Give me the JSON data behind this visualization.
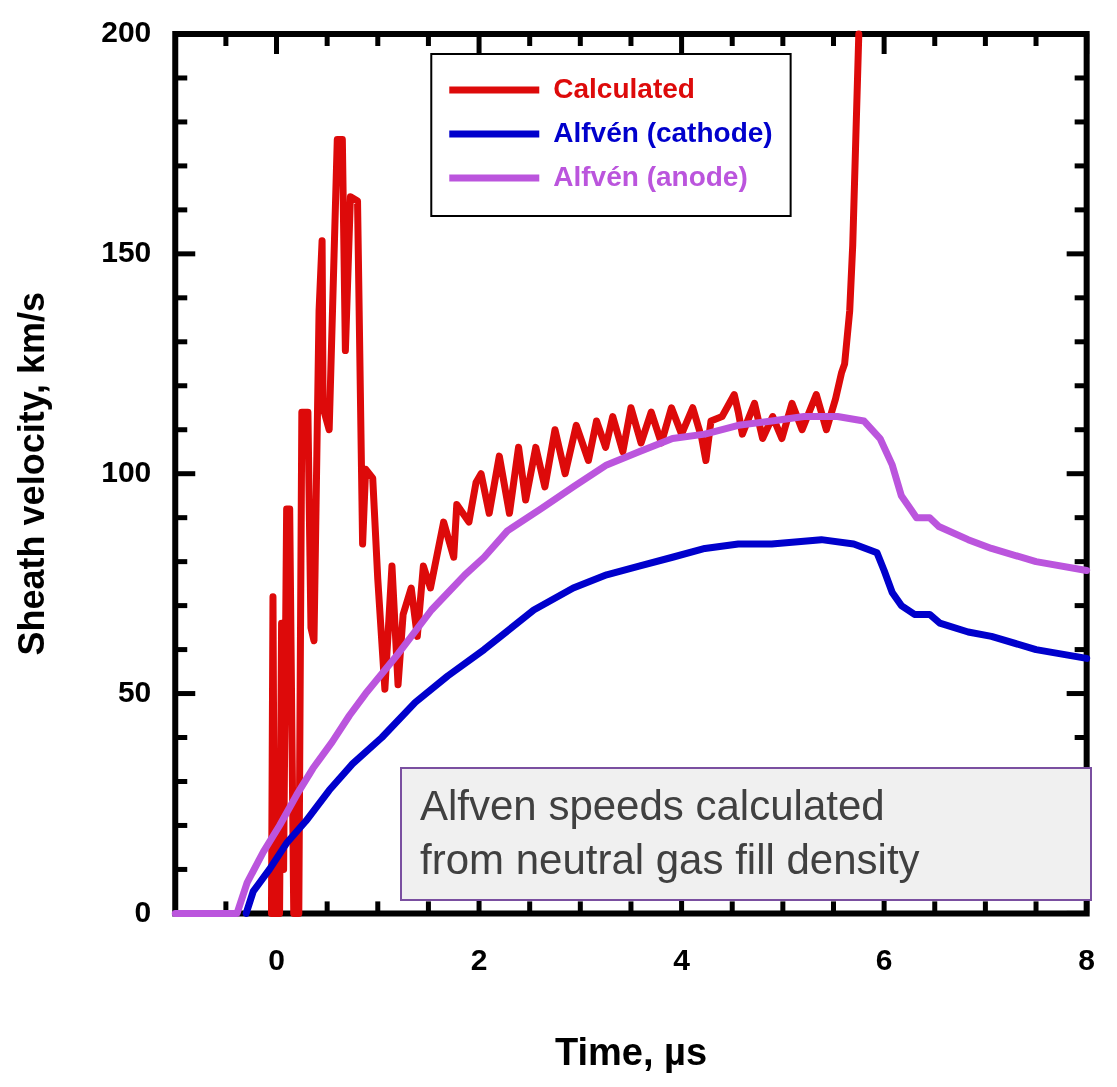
{
  "chart_data": {
    "type": "line",
    "xlabel": "Time, µs",
    "ylabel": "Sheath velocity, km/s",
    "xlim": [
      -1,
      8
    ],
    "ylim": [
      0,
      200
    ],
    "xticks": [
      {
        "value": -0.5,
        "label": null
      },
      0,
      {
        "value": 0.5,
        "label": null
      },
      {
        "value": 1,
        "label": null
      },
      {
        "value": 1.5,
        "label": null
      },
      2,
      {
        "value": 2.5,
        "label": null
      },
      {
        "value": 3,
        "label": null
      },
      {
        "value": 3.5,
        "label": null
      },
      4,
      {
        "value": 4.5,
        "label": null
      },
      {
        "value": 5,
        "label": null
      },
      {
        "value": 5.5,
        "label": null
      },
      6,
      {
        "value": 6.5,
        "label": null
      },
      {
        "value": 7,
        "label": null
      },
      {
        "value": 7.5,
        "label": null
      },
      8
    ],
    "yticks": [
      0,
      {
        "value": 10,
        "label": null
      },
      {
        "value": 20,
        "label": null
      },
      {
        "value": 30,
        "label": null
      },
      {
        "value": 40,
        "label": null
      },
      50,
      {
        "value": 60,
        "label": null
      },
      {
        "value": 70,
        "label": null
      },
      {
        "value": 80,
        "label": null
      },
      {
        "value": 90,
        "label": null
      },
      100,
      {
        "value": 110,
        "label": null
      },
      {
        "value": 120,
        "label": null
      },
      {
        "value": 130,
        "label": null
      },
      {
        "value": 140,
        "label": null
      },
      150,
      {
        "value": 160,
        "label": null
      },
      {
        "value": 170,
        "label": null
      },
      {
        "value": 180,
        "label": null
      },
      {
        "value": 190,
        "label": null
      },
      200
    ],
    "grid": false,
    "legend": "top",
    "marker": "none",
    "line_style": "solid",
    "annotations": [
      "Alfven speeds calculated from neutral gas fill density"
    ],
    "series": [
      {
        "name": "Calculated",
        "color": "#dd0a0a",
        "x": [
          -0.05,
          -0.035,
          -0.02,
          0.03,
          0.05,
          0.07,
          0.1,
          0.13,
          0.17,
          0.22,
          0.25,
          0.31,
          0.34,
          0.37,
          0.42,
          0.45,
          0.46,
          0.52,
          0.6,
          0.65,
          0.68,
          0.73,
          0.8,
          0.85,
          0.88,
          0.95,
          1.0,
          1.07,
          1.14,
          1.2,
          1.25,
          1.33,
          1.39,
          1.45,
          1.52,
          1.65,
          1.75,
          1.78,
          1.9,
          1.97,
          2.02,
          2.1,
          2.2,
          2.3,
          2.39,
          2.46,
          2.56,
          2.65,
          2.75,
          2.85,
          2.96,
          3.08,
          3.16,
          3.25,
          3.32,
          3.42,
          3.5,
          3.6,
          3.7,
          3.8,
          3.9,
          4.0,
          4.11,
          4.2,
          4.24,
          4.29,
          4.4,
          4.52,
          4.56,
          4.6,
          4.72,
          4.8,
          4.9,
          4.99,
          5.09,
          5.19,
          5.33,
          5.43,
          5.52,
          5.58,
          5.61,
          5.66,
          5.69,
          5.72,
          5.75
        ],
        "values": [
          0,
          72,
          0,
          0,
          66,
          10,
          92,
          92,
          0,
          0,
          114,
          114,
          65,
          62,
          137,
          153,
          115,
          110,
          176,
          176,
          128,
          163,
          162,
          84,
          101,
          99,
          76,
          51,
          79,
          52,
          68,
          74,
          63,
          79,
          74,
          89,
          81,
          93,
          89,
          98,
          100,
          91,
          104,
          91,
          106,
          94,
          106,
          97,
          110,
          100,
          111,
          103,
          112,
          106,
          113,
          105,
          115,
          107,
          114,
          107,
          115,
          109,
          115,
          108,
          103,
          112,
          113,
          118,
          114,
          109,
          116,
          108,
          113,
          108,
          116,
          110,
          118,
          110,
          117,
          123,
          125,
          137,
          152,
          176,
          200
        ]
      },
      {
        "name": "Alfvén (cathode)",
        "color": "#0000cc",
        "x": [
          -0.3,
          -0.23,
          -0.07,
          0.1,
          0.29,
          0.52,
          0.75,
          1.04,
          1.37,
          1.69,
          2.05,
          2.54,
          2.93,
          3.26,
          3.58,
          3.91,
          4.23,
          4.56,
          4.89,
          5.38,
          5.7,
          5.93,
          6.0,
          6.08,
          6.17,
          6.3,
          6.45,
          6.55,
          6.83,
          7.06,
          7.5,
          8
        ],
        "values": [
          0,
          5,
          10,
          16,
          21,
          28,
          34,
          40,
          48,
          54,
          60,
          69,
          74,
          77,
          79,
          81,
          83,
          84,
          84,
          85,
          84,
          82,
          78,
          73,
          70,
          68,
          68,
          66,
          64,
          63,
          60,
          58
        ]
      },
      {
        "name": "Alfvén (anode)",
        "color": "#bb55dd",
        "x": [
          -1,
          -0.39,
          -0.29,
          -0.13,
          0.03,
          0.2,
          0.36,
          0.55,
          0.72,
          0.88,
          1.2,
          1.53,
          1.86,
          2.05,
          2.28,
          2.61,
          2.93,
          3.26,
          3.58,
          3.91,
          4.23,
          4.56,
          4.89,
          5.21,
          5.54,
          5.8,
          5.96,
          6.08,
          6.17,
          6.32,
          6.45,
          6.54,
          6.83,
          7.06,
          7.5,
          8
        ],
        "values": [
          0,
          0,
          7,
          14,
          20,
          27,
          33,
          39,
          45,
          50,
          59,
          69,
          77,
          81,
          87,
          92,
          97,
          102,
          105,
          108,
          109,
          111,
          112,
          113,
          113,
          112,
          108,
          102,
          95,
          90,
          90,
          88,
          85,
          83,
          80,
          78
        ]
      }
    ]
  }
}
